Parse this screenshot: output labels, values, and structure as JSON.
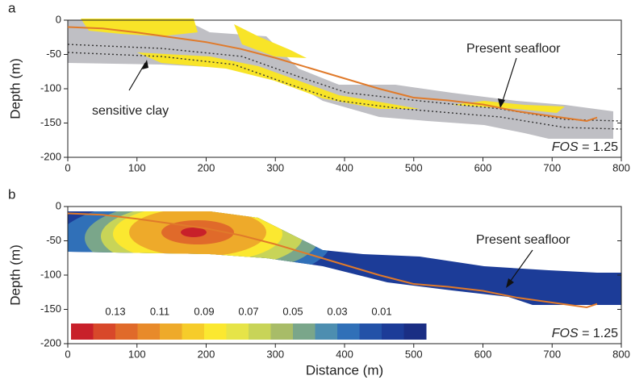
{
  "chart_data": [
    {
      "type": "line",
      "panel_label": "a",
      "ylabel": "Depth (m)",
      "xlim": [
        0,
        800
      ],
      "ylim": [
        -200,
        0
      ],
      "xticks": [
        0,
        100,
        200,
        300,
        400,
        500,
        600,
        700,
        800
      ],
      "yticks": [
        0,
        -50,
        -100,
        -150,
        -200
      ],
      "series": [
        {
          "name": "Present seafloor",
          "color": "#e07a2a",
          "x": [
            0,
            50,
            100,
            150,
            200,
            250,
            300,
            350,
            400,
            450,
            500,
            550,
            600,
            650,
            700,
            750,
            765
          ],
          "values": [
            -10,
            -12,
            -18,
            -25,
            -32,
            -42,
            -55,
            -70,
            -85,
            -100,
            -113,
            -117,
            -123,
            -133,
            -140,
            -147,
            -142
          ]
        }
      ],
      "annotation": "sensitive clay",
      "fos_label": "FOS",
      "fos_value": "= 1.25"
    },
    {
      "type": "line",
      "panel_label": "b",
      "ylabel": "Depth (m)",
      "xlabel": "Distance (m)",
      "xlim": [
        0,
        800
      ],
      "ylim": [
        -200,
        0
      ],
      "xticks": [
        0,
        100,
        200,
        300,
        400,
        500,
        600,
        700,
        800
      ],
      "yticks": [
        0,
        -50,
        -100,
        -150,
        -200
      ],
      "series": [
        {
          "name": "Present seafloor",
          "color": "#e07a2a",
          "x": [
            0,
            50,
            100,
            150,
            200,
            250,
            300,
            350,
            400,
            450,
            500,
            550,
            600,
            650,
            700,
            750,
            765
          ],
          "values": [
            -10,
            -12,
            -18,
            -25,
            -32,
            -42,
            -55,
            -70,
            -85,
            -100,
            -113,
            -117,
            -123,
            -133,
            -140,
            -147,
            -142
          ]
        }
      ],
      "fos_label": "FOS",
      "fos_value": "= 1.25",
      "colorbar": {
        "range": [
          0.15,
          -0.01
        ],
        "ticks": [
          0.13,
          0.11,
          0.09,
          0.07,
          0.05,
          0.03,
          0.01
        ],
        "colors": [
          "#c8202a",
          "#d8482a",
          "#e06a2a",
          "#e88a2a",
          "#eeaa2a",
          "#f6cc2a",
          "#fbe830",
          "#e6e448",
          "#c8d458",
          "#a8bc68",
          "#7aa68a",
          "#4d8eb0",
          "#3070b8",
          "#2352a8",
          "#1c3c98",
          "#1a2e84"
        ]
      }
    }
  ]
}
